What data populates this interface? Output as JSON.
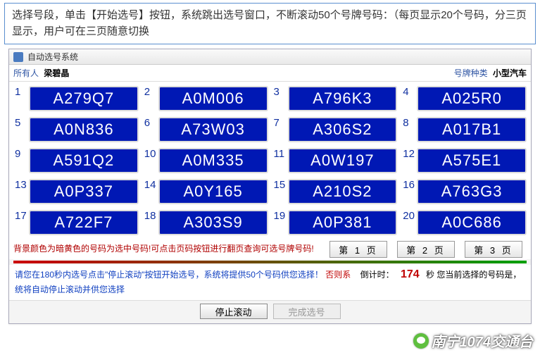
{
  "instruction": "选择号段，单击【开始选号】按钮，系统跳出选号窗口，不断滚动50个号牌号码：（每页显示20个号码，分三页显示，用户可在三页随意切换",
  "window": {
    "title": "自动选号系统"
  },
  "owner": {
    "label": "所有人",
    "value": "梁碧晶"
  },
  "category": {
    "label": "号牌种类",
    "value": "小型汽车"
  },
  "plate_style": {
    "bg": "#0018b4",
    "fg": "#ffffff",
    "border": "#dcdcdc",
    "index_color": "#1030a0",
    "font_size": 22
  },
  "plates": [
    "A279Q7",
    "A0M006",
    "A796K3",
    "A025R0",
    "A0N836",
    "A73W03",
    "A306S2",
    "A017B1",
    "A591Q2",
    "A0M335",
    "A0W197",
    "A575E1",
    "A0P337",
    "A0Y165",
    "A210S2",
    "A763G3",
    "A722F7",
    "A303S9",
    "A0P381",
    "A0C686"
  ],
  "hint_highlight": "背景颜色为暗黄色的号码为选中号码!可点击页码按钮进行翻页查询可选号牌号码!",
  "pages": {
    "p1": "第 1 页",
    "p2": "第 2 页",
    "p3": "第 3 页"
  },
  "status": {
    "prefix": "请您在180秒内选号点击\"停止滚动\"按钮开始选号，系统将提供50个号码供您选择！",
    "otherwise": "否则系",
    "countdown_label": "倒计时：",
    "seconds": "174",
    "suffix1": "秒  您当前选择的号码是，",
    "line2": "统将自动停止滚动并供您选择"
  },
  "actions": {
    "stop": "停止滚动",
    "done": "完成选号"
  },
  "watermark": "南宁1074交通台",
  "divider_colors": {
    "from": "#cc0000",
    "to": "#00a000"
  }
}
